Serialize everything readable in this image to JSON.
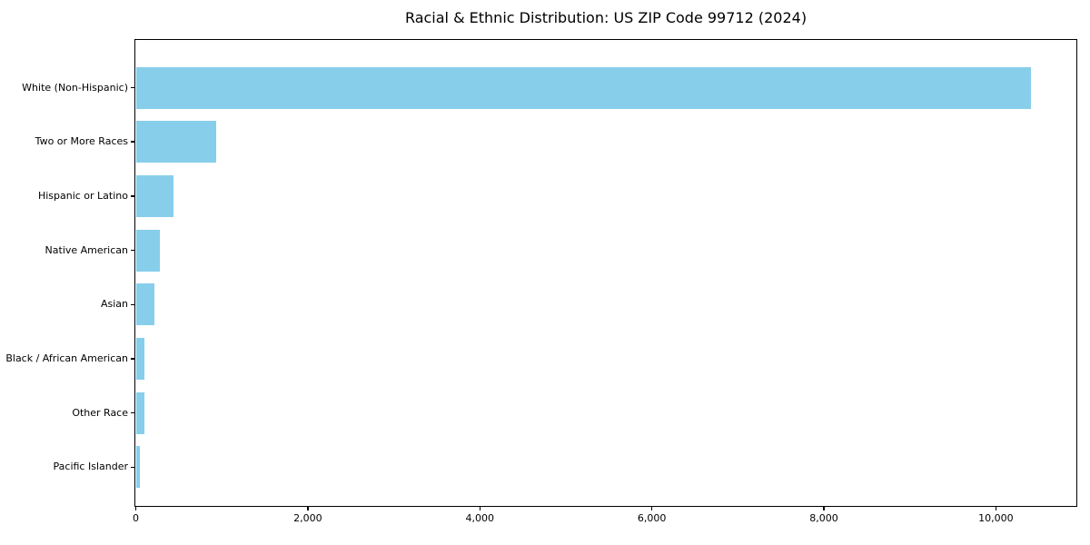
{
  "title": "Racial & Ethnic Distribution: US ZIP Code 99712 (2024)",
  "colors": {
    "bar": "#87CEEB",
    "spine": "#000000",
    "text": "#000000",
    "background": "#ffffff"
  },
  "chart_data": {
    "type": "bar",
    "orientation": "horizontal",
    "title": "Racial & Ethnic Distribution: US ZIP Code 99712 (2024)",
    "xlabel": "",
    "ylabel": "",
    "categories": [
      "White (Non-Hispanic)",
      "Two or More Races",
      "Hispanic or Latino",
      "Native American",
      "Asian",
      "Black / African American",
      "Other Race",
      "Pacific Islander"
    ],
    "values": [
      10410,
      930,
      440,
      280,
      215,
      100,
      105,
      45
    ],
    "xlim": [
      0,
      10930
    ],
    "x_ticks": [
      0,
      2000,
      4000,
      6000,
      8000,
      10000
    ],
    "x_tick_labels": [
      "0",
      "2,000",
      "4,000",
      "6,000",
      "8,000",
      "10,000"
    ],
    "bar_color": "#87CEEB",
    "grid": false,
    "legend": null
  }
}
